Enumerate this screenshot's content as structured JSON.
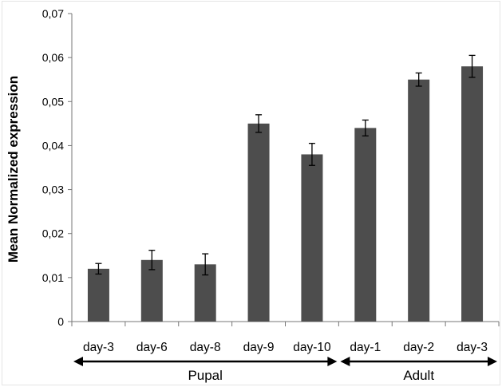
{
  "chart_data": {
    "type": "bar",
    "ylabel": "Mean Normalized expression",
    "ylim": [
      0,
      0.07
    ],
    "yticks": [
      "0",
      "0,01",
      "0,02",
      "0,03",
      "0,04",
      "0,05",
      "0,06",
      "0,07"
    ],
    "categories": [
      "day-3",
      "day-6",
      "day-8",
      "day-9",
      "day-10",
      "day-1",
      "day-2",
      "day-3"
    ],
    "values": [
      0.012,
      0.014,
      0.013,
      0.045,
      0.038,
      0.044,
      0.055,
      0.058
    ],
    "errors": [
      0.0012,
      0.0022,
      0.0024,
      0.002,
      0.0025,
      0.0018,
      0.0015,
      0.0025
    ],
    "groups": [
      {
        "label": "Pupal",
        "categories": [
          "day-3",
          "day-6",
          "day-8",
          "day-9",
          "day-10"
        ]
      },
      {
        "label": "Adult",
        "categories": [
          "day-1",
          "day-2",
          "day-3"
        ]
      }
    ],
    "grid": false,
    "bar_color": "#4d4d4d"
  }
}
